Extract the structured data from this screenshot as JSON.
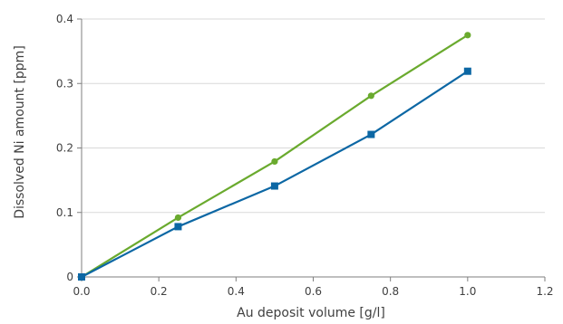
{
  "chart_data": {
    "type": "line",
    "title": "",
    "xlabel": "Au deposit volume [g/l]",
    "ylabel": "Dissolved Ni amount [ppm]",
    "xlim": [
      0.0,
      1.2
    ],
    "ylim": [
      0,
      0.4
    ],
    "xticks": [
      "0.0",
      "0.2",
      "0.4",
      "0.6",
      "0.8",
      "1.0",
      "1.2"
    ],
    "yticks": [
      "0",
      "0.1",
      "0.2",
      "0.3",
      "0.4"
    ],
    "grid": "horizontal",
    "legend": "none",
    "series": [
      {
        "color": "#6aaa2e",
        "marker": "circle",
        "x": [
          0.0,
          0.25,
          0.5,
          0.75,
          1.0
        ],
        "y": [
          0.0,
          0.092,
          0.179,
          0.281,
          0.375
        ]
      },
      {
        "color": "#0c67a4",
        "marker": "square",
        "x": [
          0.0,
          0.25,
          0.5,
          0.75,
          1.0
        ],
        "y": [
          0.0,
          0.078,
          0.141,
          0.221,
          0.319
        ]
      }
    ]
  }
}
